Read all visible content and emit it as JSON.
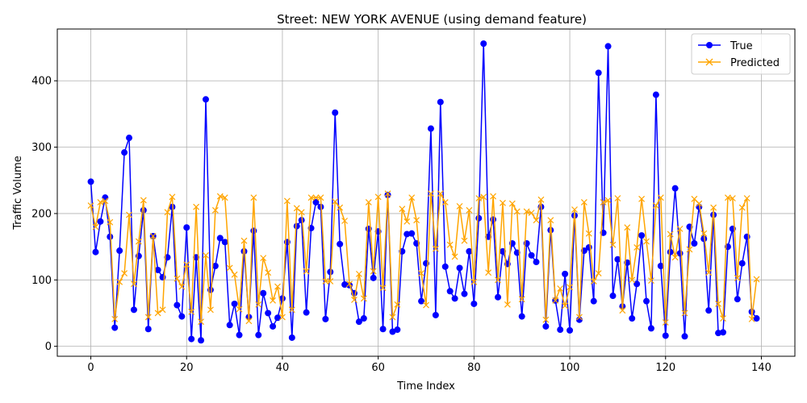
{
  "chart_data": {
    "type": "line",
    "title": "Street: NEW YORK AVENUE (using demand feature)",
    "xlabel": "Time Index",
    "ylabel": "Traffic Volume",
    "xlim": [
      -7,
      147
    ],
    "ylim": [
      -15,
      478
    ],
    "xticks": [
      0,
      20,
      40,
      60,
      80,
      100,
      120,
      140
    ],
    "yticks": [
      0,
      100,
      200,
      300,
      400
    ],
    "grid": true,
    "legend_position": "top-right",
    "series": [
      {
        "name": "True",
        "color": "#0000ff",
        "marker": "circle",
        "values": [
          248,
          142,
          188,
          224,
          165,
          28,
          144,
          292,
          314,
          55,
          136,
          205,
          26,
          166,
          115,
          104,
          134,
          210,
          62,
          45,
          179,
          11,
          134,
          9,
          372,
          85,
          121,
          163,
          157,
          32,
          64,
          17,
          143,
          44,
          174,
          17,
          80,
          50,
          30,
          43,
          72,
          157,
          13,
          181,
          190,
          51,
          178,
          217,
          210,
          41,
          112,
          352,
          154,
          93,
          92,
          80,
          37,
          42,
          177,
          103,
          173,
          26,
          228,
          22,
          25,
          143,
          169,
          170,
          155,
          68,
          125,
          328,
          47,
          368,
          120,
          83,
          72,
          118,
          79,
          143,
          64,
          193,
          456,
          165,
          191,
          74,
          143,
          124,
          155,
          141,
          45,
          155,
          137,
          127,
          210,
          30,
          175,
          69,
          25,
          109,
          24,
          197,
          40,
          144,
          149,
          68,
          412,
          171,
          452,
          76,
          131,
          60,
          126,
          42,
          94,
          167,
          68,
          27,
          379,
          121,
          16,
          142,
          238,
          140,
          15,
          180,
          155,
          210,
          162,
          54,
          198,
          20,
          21,
          150,
          177,
          71,
          125,
          165,
          52,
          42
        ]
      },
      {
        "name": "Predicted",
        "color": "#ffa500",
        "marker": "x",
        "values": [
          212,
          180,
          217,
          219,
          187,
          41,
          97,
          110,
          198,
          94,
          158,
          220,
          44,
          166,
          50,
          55,
          202,
          225,
          102,
          90,
          123,
          52,
          210,
          37,
          137,
          55,
          205,
          226,
          224,
          118,
          108,
          56,
          159,
          38,
          224,
          63,
          133,
          111,
          69,
          90,
          44,
          219,
          55,
          208,
          202,
          113,
          224,
          224,
          224,
          98,
          98,
          218,
          209,
          189,
          94,
          70,
          109,
          72,
          217,
          113,
          225,
          88,
          230,
          44,
          63,
          207,
          188,
          224,
          190,
          110,
          62,
          230,
          147,
          230,
          217,
          153,
          135,
          211,
          159,
          205,
          97,
          223,
          225,
          111,
          226,
          100,
          216,
          63,
          215,
          203,
          71,
          203,
          201,
          190,
          221,
          40,
          190,
          69,
          87,
          61,
          89,
          206,
          44,
          217,
          170,
          98,
          110,
          217,
          220,
          153,
          223,
          54,
          179,
          100,
          149,
          222,
          158,
          99,
          212,
          224,
          36,
          169,
          134,
          177,
          50,
          146,
          222,
          215,
          170,
          111,
          209,
          64,
          42,
          224,
          223,
          103,
          209,
          223,
          41,
          101
        ]
      }
    ]
  }
}
